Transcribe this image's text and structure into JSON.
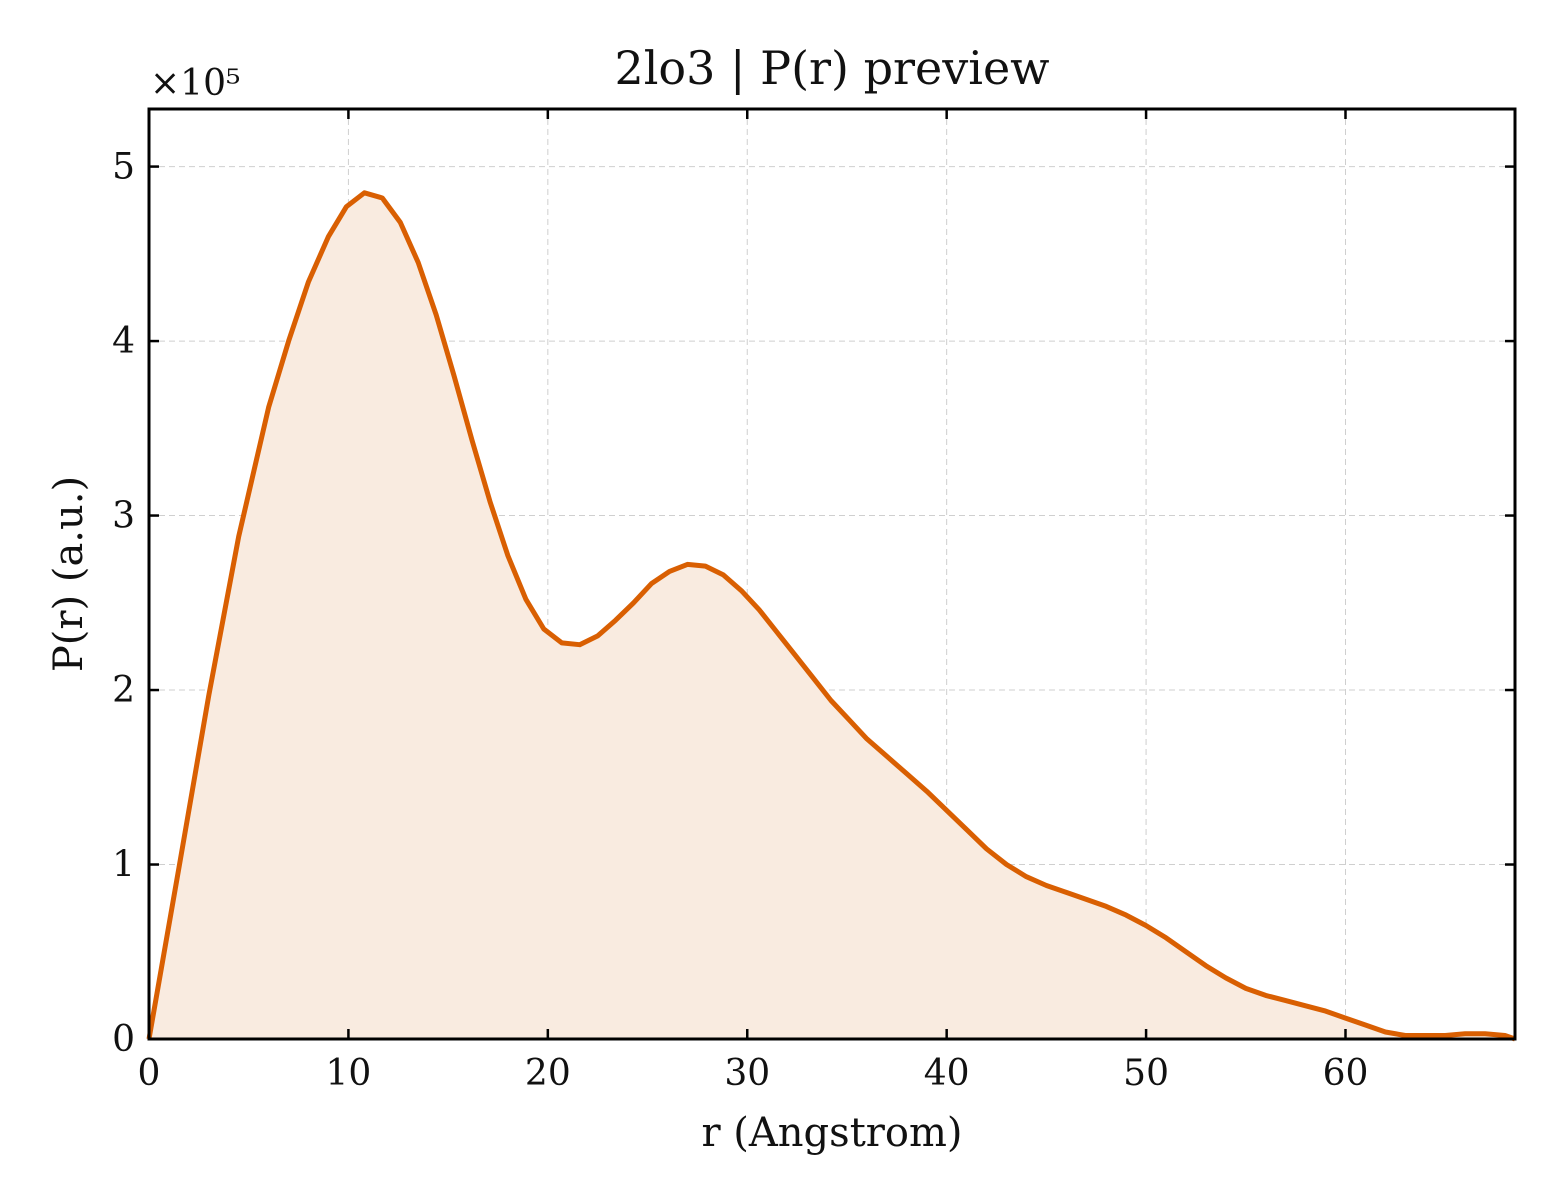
{
  "chart_data": {
    "type": "area",
    "title": "2lo3 | P(r) preview",
    "xlabel": "r (Angstrom)",
    "ylabel": "P(r) (a.u.)",
    "y_multiplier_label": "×10⁵",
    "y_multiplier": 100000,
    "xlim": [
      0,
      68.5
    ],
    "ylim": [
      0,
      5.33
    ],
    "x_ticks": [
      0,
      10,
      20,
      30,
      40,
      50,
      60
    ],
    "y_ticks": [
      0,
      1,
      2,
      3,
      4,
      5
    ],
    "grid": true,
    "colors": {
      "line": "#d95f02",
      "fill": "#f9ebe0"
    },
    "series": [
      {
        "x": [
          0,
          1.5,
          3.0,
          4.5,
          6.0,
          7.0,
          8.0,
          9.0,
          9.9,
          10.8,
          11.7,
          12.6,
          13.5,
          14.4,
          15.3,
          16.2,
          17.1,
          18.0,
          18.9,
          19.8,
          20.7,
          21.6,
          22.5,
          23.4,
          24.3,
          25.2,
          26.1,
          27.0,
          27.9,
          28.8,
          29.7,
          30.6,
          31.5,
          32.4,
          33.3,
          34.2,
          35.1,
          36.0,
          37.0,
          38.0,
          39.0,
          40.0,
          41.0,
          42.0,
          43.0,
          44.0,
          45.0,
          46.0,
          47.0,
          48.0,
          49.0,
          50.0,
          51.0,
          52.0,
          53.0,
          54.0,
          55.0,
          56.0,
          57.0,
          58.0,
          59.0,
          60.0,
          61.0,
          62.0,
          63.0,
          64.0,
          65.0,
          66.0,
          67.0,
          68.0,
          68.5
        ],
        "values": [
          0,
          0.98,
          1.97,
          2.88,
          3.62,
          4.0,
          4.34,
          4.6,
          4.77,
          4.85,
          4.82,
          4.68,
          4.45,
          4.15,
          3.8,
          3.43,
          3.08,
          2.77,
          2.52,
          2.35,
          2.27,
          2.26,
          2.31,
          2.4,
          2.5,
          2.61,
          2.68,
          2.72,
          2.71,
          2.66,
          2.57,
          2.46,
          2.33,
          2.2,
          2.07,
          1.94,
          1.83,
          1.72,
          1.62,
          1.52,
          1.42,
          1.31,
          1.2,
          1.09,
          1.0,
          0.93,
          0.88,
          0.84,
          0.8,
          0.76,
          0.71,
          0.65,
          0.58,
          0.5,
          0.42,
          0.35,
          0.29,
          0.25,
          0.22,
          0.19,
          0.16,
          0.12,
          0.08,
          0.04,
          0.02,
          0.02,
          0.02,
          0.03,
          0.03,
          0.02,
          0.0
        ]
      }
    ]
  }
}
